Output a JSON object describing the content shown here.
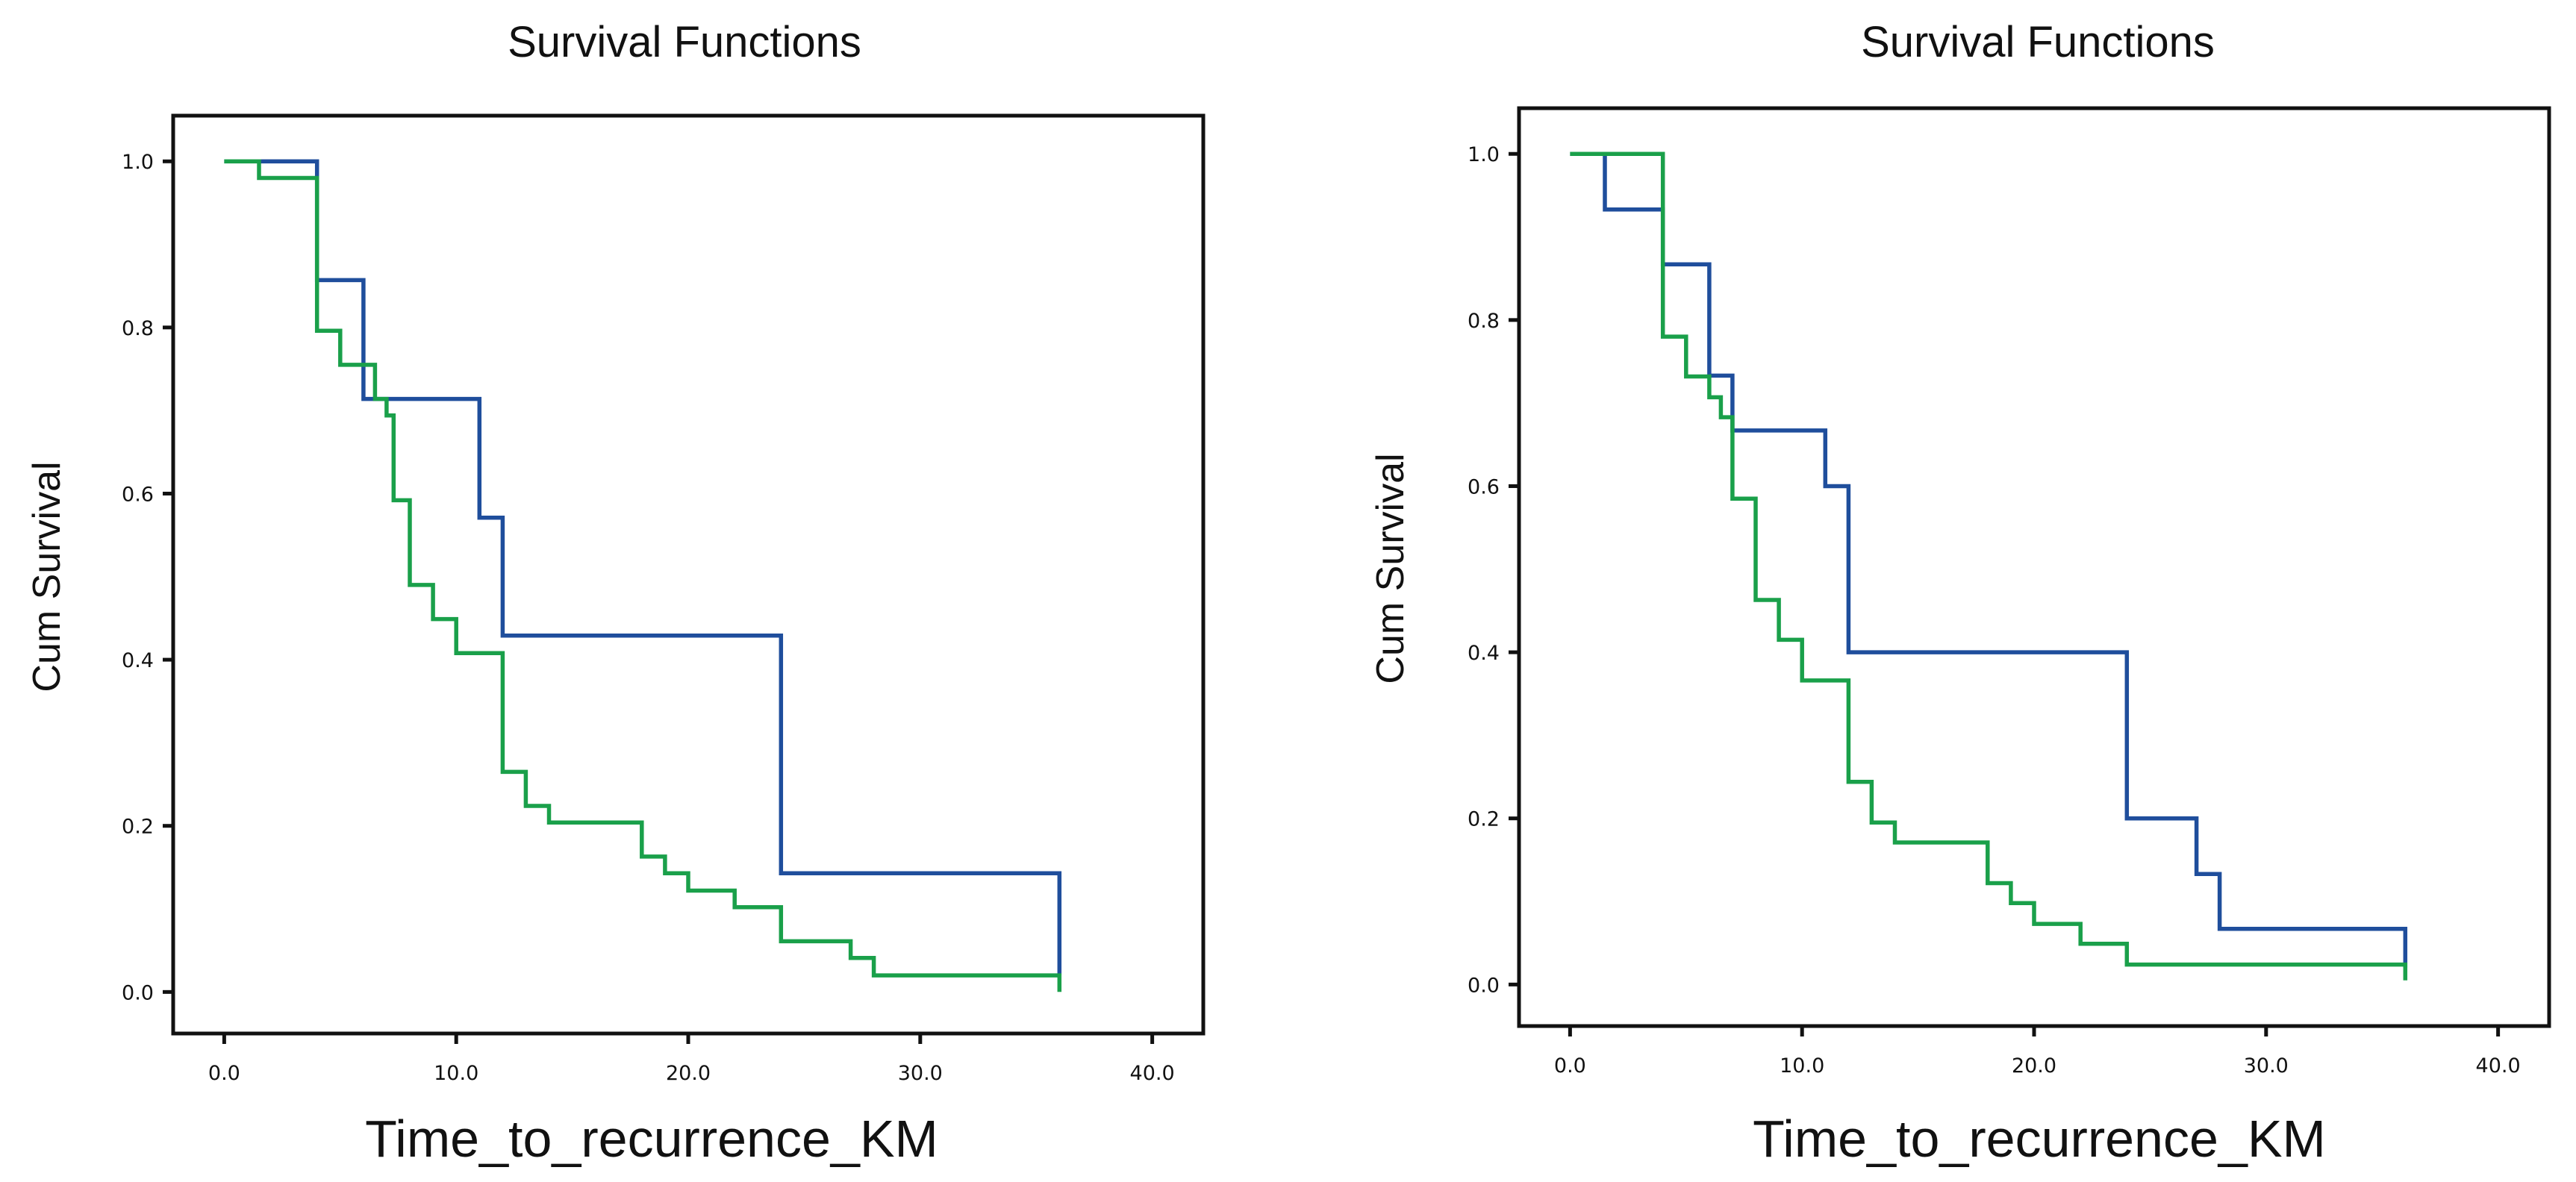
{
  "chart_data": [
    {
      "type": "line",
      "title": "Survival Functions",
      "xlabel": "Time_to_recurrence_KM",
      "ylabel": "Cum Survival",
      "xlim": [
        -2.2,
        42.2
      ],
      "ylim": [
        -0.05,
        1.055
      ],
      "xticks": [
        0,
        10,
        20,
        30,
        40
      ],
      "xtick_labels": [
        "0.0",
        "10.0",
        "20.0",
        "30.0",
        "40.0"
      ],
      "yticks": [
        0,
        0.2,
        0.4,
        0.6,
        0.8,
        1.0
      ],
      "ytick_labels": [
        "0.0",
        "0.2",
        "0.4",
        "0.6",
        "0.8",
        "1.0"
      ],
      "grid": false,
      "series": [
        {
          "color": "#1f4e9c",
          "steps": [
            [
              0,
              1.0
            ],
            [
              4,
              1.0
            ],
            [
              4,
              0.857
            ],
            [
              6,
              0.857
            ],
            [
              6,
              0.714
            ],
            [
              11,
              0.714
            ],
            [
              11,
              0.571
            ],
            [
              12,
              0.571
            ],
            [
              12,
              0.429
            ],
            [
              24,
              0.429
            ],
            [
              24,
              0.143
            ],
            [
              36,
              0.143
            ],
            [
              36,
              0.02
            ]
          ]
        },
        {
          "color": "#1aa04a",
          "steps": [
            [
              0,
              1.0
            ],
            [
              1.5,
              1.0
            ],
            [
              1.5,
              0.98
            ],
            [
              4,
              0.98
            ],
            [
              4,
              0.796
            ],
            [
              5,
              0.796
            ],
            [
              5,
              0.755
            ],
            [
              6.5,
              0.755
            ],
            [
              6.5,
              0.714
            ],
            [
              7,
              0.714
            ],
            [
              7,
              0.694
            ],
            [
              7.3,
              0.694
            ],
            [
              7.3,
              0.592
            ],
            [
              8,
              0.592
            ],
            [
              8,
              0.49
            ],
            [
              9,
              0.49
            ],
            [
              9,
              0.449
            ],
            [
              10,
              0.449
            ],
            [
              10,
              0.408
            ],
            [
              12,
              0.408
            ],
            [
              12,
              0.265
            ],
            [
              13,
              0.265
            ],
            [
              13,
              0.224
            ],
            [
              14,
              0.224
            ],
            [
              14,
              0.204
            ],
            [
              18,
              0.204
            ],
            [
              18,
              0.163
            ],
            [
              19,
              0.163
            ],
            [
              19,
              0.143
            ],
            [
              20,
              0.143
            ],
            [
              20,
              0.122
            ],
            [
              22,
              0.122
            ],
            [
              22,
              0.102
            ],
            [
              24,
              0.102
            ],
            [
              24,
              0.061
            ],
            [
              27,
              0.061
            ],
            [
              27,
              0.041
            ],
            [
              28,
              0.041
            ],
            [
              28,
              0.02
            ],
            [
              36,
              0.02
            ],
            [
              36,
              0.0
            ]
          ]
        }
      ]
    },
    {
      "type": "line",
      "title": "Survival Functions",
      "xlabel": "Time_to_recurrence_KM",
      "ylabel": "Cum Survival",
      "xlim": [
        -2.2,
        42.2
      ],
      "ylim": [
        -0.05,
        1.055
      ],
      "xticks": [
        0,
        10,
        20,
        30,
        40
      ],
      "xtick_labels": [
        "0.0",
        "10.0",
        "20.0",
        "30.0",
        "40.0"
      ],
      "yticks": [
        0,
        0.2,
        0.4,
        0.6,
        0.8,
        1.0
      ],
      "ytick_labels": [
        "0.0",
        "0.2",
        "0.4",
        "0.6",
        "0.8",
        "1.0"
      ],
      "grid": false,
      "series": [
        {
          "color": "#1f4e9c",
          "steps": [
            [
              0,
              1.0
            ],
            [
              1.5,
              1.0
            ],
            [
              1.5,
              0.933
            ],
            [
              4,
              0.933
            ],
            [
              4,
              0.867
            ],
            [
              6,
              0.867
            ],
            [
              6,
              0.733
            ],
            [
              7,
              0.733
            ],
            [
              7,
              0.667
            ],
            [
              11,
              0.667
            ],
            [
              11,
              0.6
            ],
            [
              12,
              0.6
            ],
            [
              12,
              0.4
            ],
            [
              24,
              0.4
            ],
            [
              24,
              0.2
            ],
            [
              27,
              0.2
            ],
            [
              27,
              0.133
            ],
            [
              28,
              0.133
            ],
            [
              28,
              0.067
            ],
            [
              36,
              0.067
            ],
            [
              36,
              0.02
            ]
          ]
        },
        {
          "color": "#1aa04a",
          "steps": [
            [
              0,
              1.0
            ],
            [
              4,
              1.0
            ],
            [
              4,
              0.78
            ],
            [
              5,
              0.78
            ],
            [
              5,
              0.732
            ],
            [
              6,
              0.732
            ],
            [
              6,
              0.707
            ],
            [
              6.5,
              0.707
            ],
            [
              6.5,
              0.683
            ],
            [
              7,
              0.683
            ],
            [
              7,
              0.585
            ],
            [
              8,
              0.585
            ],
            [
              8,
              0.463
            ],
            [
              9,
              0.463
            ],
            [
              9,
              0.415
            ],
            [
              10,
              0.415
            ],
            [
              10,
              0.366
            ],
            [
              12,
              0.366
            ],
            [
              12,
              0.244
            ],
            [
              13,
              0.244
            ],
            [
              13,
              0.195
            ],
            [
              14,
              0.195
            ],
            [
              14,
              0.171
            ],
            [
              18,
              0.171
            ],
            [
              18,
              0.122
            ],
            [
              19,
              0.122
            ],
            [
              19,
              0.098
            ],
            [
              20,
              0.098
            ],
            [
              20,
              0.073
            ],
            [
              22,
              0.073
            ],
            [
              22,
              0.049
            ],
            [
              24,
              0.049
            ],
            [
              24,
              0.024
            ],
            [
              36,
              0.024
            ],
            [
              36,
              0.005
            ]
          ]
        }
      ]
    }
  ]
}
